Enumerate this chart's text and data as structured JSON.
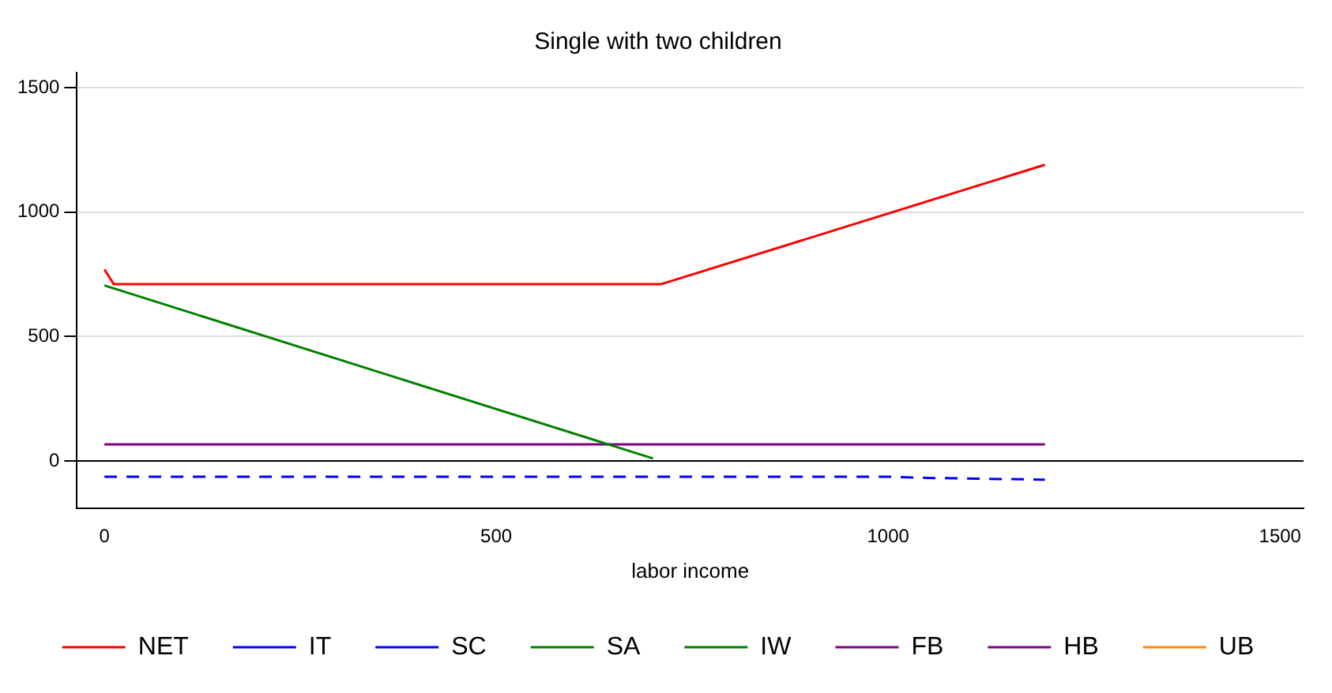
{
  "chart_data": {
    "type": "line",
    "title": "Single with two children",
    "xlabel": "labor income",
    "xlim": [
      -35,
      1530
    ],
    "ylim": [
      -190,
      1560
    ],
    "xticks": [
      0,
      500,
      1000,
      1500
    ],
    "yticks": [
      0,
      500,
      1000,
      1500
    ],
    "grid": "y",
    "legend": "bottom",
    "marker": "none",
    "ref_lines": [
      {
        "axis": "y",
        "value": 0,
        "color": "#000000"
      }
    ],
    "series": [
      {
        "name": "NET",
        "color": "#ff0000",
        "line_style": "solid",
        "x": [
          0,
          12,
          710,
          1200
        ],
        "values": [
          770,
          710,
          710,
          1190
        ]
      },
      {
        "name": "IT",
        "color": "#0000ff",
        "line_style": "solid"
      },
      {
        "name": "SC",
        "color": "#0000ff",
        "line_style": "dashed",
        "x": [
          0,
          1000,
          1050,
          1200
        ],
        "values": [
          -63,
          -63,
          -68,
          -75
        ]
      },
      {
        "name": "SA",
        "color": "#008000",
        "line_style": "solid",
        "x": [
          0,
          700
        ],
        "values": [
          705,
          10
        ]
      },
      {
        "name": "IW",
        "color": "#008000",
        "line_style": "dashed"
      },
      {
        "name": "FB",
        "color": "#800080",
        "line_style": "solid",
        "x": [
          0,
          1200
        ],
        "values": [
          67,
          67
        ]
      },
      {
        "name": "HB",
        "color": "#800080",
        "line_style": "dashed"
      },
      {
        "name": "UB",
        "color": "#ff8c00",
        "line_style": "solid"
      }
    ]
  }
}
